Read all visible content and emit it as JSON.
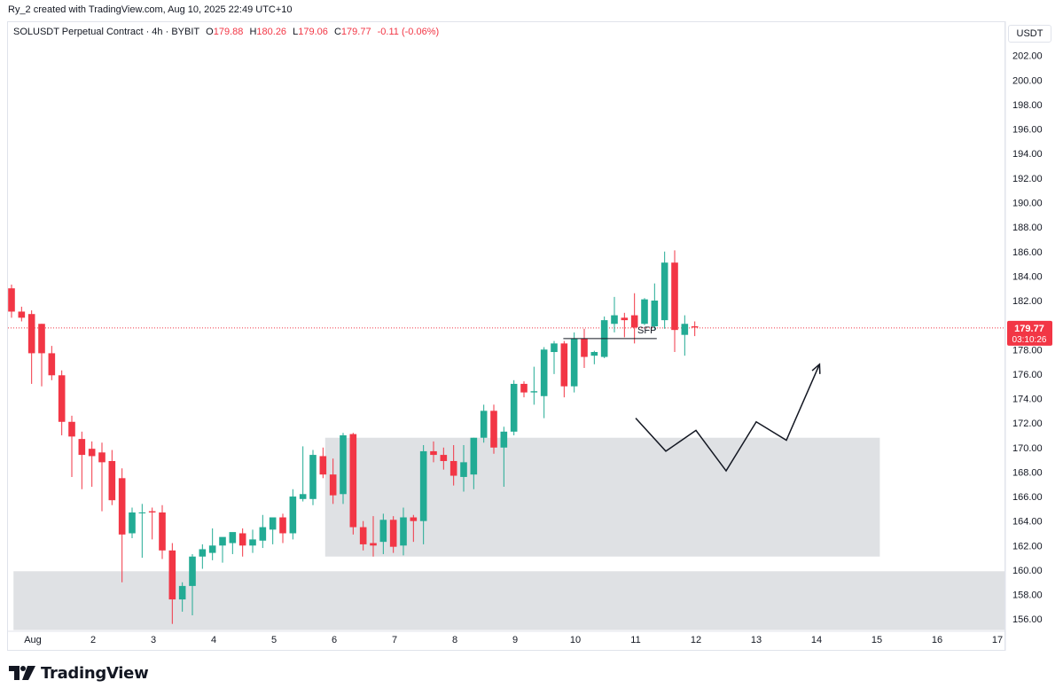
{
  "header": {
    "caption": "Ry_2 created with TradingView.com, Aug 10, 2025 22:49 UTC+10"
  },
  "legend": {
    "symbol": "SOLUSDT Perpetual Contract · 4h · BYBIT",
    "open_label": "O",
    "open": "179.88",
    "high_label": "H",
    "high": "180.26",
    "low_label": "L",
    "low": "179.06",
    "close_label": "C",
    "close": "179.77",
    "change": "-0.11 (-0.06%)",
    "down_color": "#f23645"
  },
  "price_axis": {
    "currency": "USDT",
    "last_price": "179.77",
    "countdown": "03:10:26"
  },
  "brand": {
    "name": "TradingView"
  },
  "chart_data": {
    "type": "candlestick",
    "title": "SOLUSDT Perpetual Contract · 4h · BYBIT",
    "colors": {
      "up": "#22ab94",
      "down": "#f23645",
      "zone": "#dfe1e4",
      "last_price_line": "#f23645"
    },
    "ylim": [
      155,
      203.5
    ],
    "y_ticks": [
      "156.00",
      "158.00",
      "160.00",
      "162.00",
      "164.00",
      "166.00",
      "168.00",
      "170.00",
      "172.00",
      "174.00",
      "176.00",
      "178.00",
      "180.00",
      "182.00",
      "184.00",
      "186.00",
      "188.00",
      "190.00",
      "192.00",
      "194.00",
      "196.00",
      "198.00",
      "200.00",
      "202.00"
    ],
    "x_ticks": [
      {
        "label": "Aug",
        "day": 1
      },
      {
        "label": "2",
        "day": 2
      },
      {
        "label": "3",
        "day": 3
      },
      {
        "label": "4",
        "day": 4
      },
      {
        "label": "5",
        "day": 5
      },
      {
        "label": "6",
        "day": 6
      },
      {
        "label": "7",
        "day": 7
      },
      {
        "label": "8",
        "day": 8
      },
      {
        "label": "9",
        "day": 9
      },
      {
        "label": "10",
        "day": 10
      },
      {
        "label": "11",
        "day": 11
      },
      {
        "label": "12",
        "day": 12
      },
      {
        "label": "13",
        "day": 13
      },
      {
        "label": "14",
        "day": 14
      },
      {
        "label": "15",
        "day": 15
      },
      {
        "label": "16",
        "day": 16
      },
      {
        "label": "17",
        "day": 17
      }
    ],
    "last_price": 179.77,
    "candles": [
      {
        "o": 183.0,
        "h": 183.3,
        "l": 180.6,
        "c": 181.1
      },
      {
        "o": 181.1,
        "h": 181.5,
        "l": 180.3,
        "c": 180.6
      },
      {
        "o": 180.9,
        "h": 181.2,
        "l": 175.2,
        "c": 177.7
      },
      {
        "o": 180.1,
        "h": 180.1,
        "l": 175.0,
        "c": 177.7
      },
      {
        "o": 177.7,
        "h": 178.3,
        "l": 175.5,
        "c": 175.9
      },
      {
        "o": 175.9,
        "h": 176.3,
        "l": 171.0,
        "c": 172.1
      },
      {
        "o": 172.1,
        "h": 172.6,
        "l": 167.6,
        "c": 170.9
      },
      {
        "o": 170.7,
        "h": 171.3,
        "l": 166.6,
        "c": 169.4
      },
      {
        "o": 169.9,
        "h": 170.5,
        "l": 166.8,
        "c": 169.3
      },
      {
        "o": 169.6,
        "h": 170.4,
        "l": 164.8,
        "c": 168.8
      },
      {
        "o": 168.9,
        "h": 169.8,
        "l": 165.3,
        "c": 165.7
      },
      {
        "o": 167.5,
        "h": 168.3,
        "l": 159.0,
        "c": 162.9
      },
      {
        "o": 163.0,
        "h": 165.1,
        "l": 162.6,
        "c": 164.7
      },
      {
        "o": 164.7,
        "h": 165.4,
        "l": 161.0,
        "c": 164.7
      },
      {
        "o": 164.8,
        "h": 165.1,
        "l": 162.5,
        "c": 164.7
      },
      {
        "o": 164.7,
        "h": 165.3,
        "l": 160.9,
        "c": 161.6
      },
      {
        "o": 161.6,
        "h": 162.2,
        "l": 155.6,
        "c": 157.6
      },
      {
        "o": 157.6,
        "h": 159.0,
        "l": 156.6,
        "c": 158.7
      },
      {
        "o": 158.7,
        "h": 161.3,
        "l": 156.3,
        "c": 161.1
      },
      {
        "o": 161.1,
        "h": 162.1,
        "l": 160.1,
        "c": 161.7
      },
      {
        "o": 161.4,
        "h": 163.4,
        "l": 160.8,
        "c": 162.0
      },
      {
        "o": 162.0,
        "h": 162.4,
        "l": 160.6,
        "c": 162.7
      },
      {
        "o": 162.2,
        "h": 163.0,
        "l": 161.3,
        "c": 163.1
      },
      {
        "o": 163.0,
        "h": 163.4,
        "l": 161.1,
        "c": 162.0
      },
      {
        "o": 162.0,
        "h": 163.3,
        "l": 161.4,
        "c": 162.5
      },
      {
        "o": 162.4,
        "h": 164.5,
        "l": 161.8,
        "c": 163.5
      },
      {
        "o": 163.3,
        "h": 164.1,
        "l": 162.1,
        "c": 164.3
      },
      {
        "o": 164.3,
        "h": 164.6,
        "l": 162.2,
        "c": 163.0
      },
      {
        "o": 163.0,
        "h": 166.6,
        "l": 162.5,
        "c": 166.0
      },
      {
        "o": 165.8,
        "h": 170.1,
        "l": 165.6,
        "c": 166.2
      },
      {
        "o": 165.8,
        "h": 169.8,
        "l": 165.3,
        "c": 169.4
      },
      {
        "o": 169.3,
        "h": 170.0,
        "l": 167.5,
        "c": 167.8
      },
      {
        "o": 167.8,
        "h": 169.1,
        "l": 165.4,
        "c": 166.1
      },
      {
        "o": 166.2,
        "h": 171.2,
        "l": 165.4,
        "c": 171.0
      },
      {
        "o": 171.1,
        "h": 171.2,
        "l": 162.9,
        "c": 163.5
      },
      {
        "o": 163.5,
        "h": 164.0,
        "l": 161.6,
        "c": 162.1
      },
      {
        "o": 162.2,
        "h": 164.4,
        "l": 161.1,
        "c": 162.0
      },
      {
        "o": 162.3,
        "h": 164.6,
        "l": 161.3,
        "c": 164.1
      },
      {
        "o": 164.1,
        "h": 164.4,
        "l": 161.4,
        "c": 161.9
      },
      {
        "o": 162.0,
        "h": 165.1,
        "l": 161.2,
        "c": 164.3
      },
      {
        "o": 164.3,
        "h": 164.5,
        "l": 162.3,
        "c": 164.0
      },
      {
        "o": 164.0,
        "h": 170.2,
        "l": 162.1,
        "c": 169.7
      },
      {
        "o": 169.7,
        "h": 170.5,
        "l": 168.8,
        "c": 169.4
      },
      {
        "o": 169.4,
        "h": 170.0,
        "l": 168.2,
        "c": 168.9
      },
      {
        "o": 168.9,
        "h": 170.2,
        "l": 166.9,
        "c": 167.7
      },
      {
        "o": 167.6,
        "h": 170.2,
        "l": 166.4,
        "c": 168.8
      },
      {
        "o": 167.8,
        "h": 170.8,
        "l": 166.6,
        "c": 170.8
      },
      {
        "o": 170.8,
        "h": 173.5,
        "l": 170.4,
        "c": 173.0
      },
      {
        "o": 173.0,
        "h": 173.5,
        "l": 169.5,
        "c": 170.0
      },
      {
        "o": 170.0,
        "h": 171.7,
        "l": 166.8,
        "c": 171.3
      },
      {
        "o": 171.3,
        "h": 175.5,
        "l": 171.0,
        "c": 175.2
      },
      {
        "o": 175.2,
        "h": 175.4,
        "l": 174.1,
        "c": 174.5
      },
      {
        "o": 174.5,
        "h": 176.6,
        "l": 173.5,
        "c": 174.6
      },
      {
        "o": 174.2,
        "h": 178.2,
        "l": 172.4,
        "c": 178.0
      },
      {
        "o": 177.8,
        "h": 178.7,
        "l": 176.0,
        "c": 178.5
      },
      {
        "o": 178.5,
        "h": 178.7,
        "l": 174.1,
        "c": 175.0
      },
      {
        "o": 175.0,
        "h": 179.4,
        "l": 174.5,
        "c": 178.9
      },
      {
        "o": 178.9,
        "h": 179.7,
        "l": 176.5,
        "c": 177.4
      },
      {
        "o": 177.5,
        "h": 177.9,
        "l": 176.8,
        "c": 177.8
      },
      {
        "o": 177.4,
        "h": 180.7,
        "l": 177.3,
        "c": 180.4
      },
      {
        "o": 180.1,
        "h": 182.3,
        "l": 179.4,
        "c": 180.8
      },
      {
        "o": 180.6,
        "h": 181.0,
        "l": 179.0,
        "c": 180.4
      },
      {
        "o": 180.8,
        "h": 182.6,
        "l": 178.5,
        "c": 179.8
      },
      {
        "o": 180.1,
        "h": 182.2,
        "l": 180.0,
        "c": 182.1
      },
      {
        "o": 179.9,
        "h": 183.4,
        "l": 179.6,
        "c": 182.0
      },
      {
        "o": 180.4,
        "h": 186.0,
        "l": 179.7,
        "c": 185.1
      },
      {
        "o": 185.1,
        "h": 186.1,
        "l": 177.8,
        "c": 179.6
      },
      {
        "o": 179.2,
        "h": 180.8,
        "l": 177.5,
        "c": 180.1
      },
      {
        "o": 179.9,
        "h": 180.3,
        "l": 179.1,
        "c": 179.8
      }
    ],
    "zones": [
      {
        "name": "demand-zone-upper",
        "day_from": 5.85,
        "day_to": 15.05,
        "y_from": 161.1,
        "y_to": 170.8
      },
      {
        "name": "demand-zone-lower",
        "day_from": 0.68,
        "day_to": 17.2,
        "y_from": 155.1,
        "y_to": 159.9
      }
    ],
    "annotations": {
      "sfp": {
        "label": "SFP",
        "level": 178.9,
        "day_from": 9.8,
        "day_to": 11.35
      },
      "projection_path": [
        {
          "day": 11.0,
          "price": 172.4
        },
        {
          "day": 11.5,
          "price": 169.7
        },
        {
          "day": 12.0,
          "price": 171.4
        },
        {
          "day": 12.5,
          "price": 168.1
        },
        {
          "day": 13.0,
          "price": 172.1
        },
        {
          "day": 13.5,
          "price": 170.6
        },
        {
          "day": 14.05,
          "price": 176.8
        }
      ]
    }
  }
}
